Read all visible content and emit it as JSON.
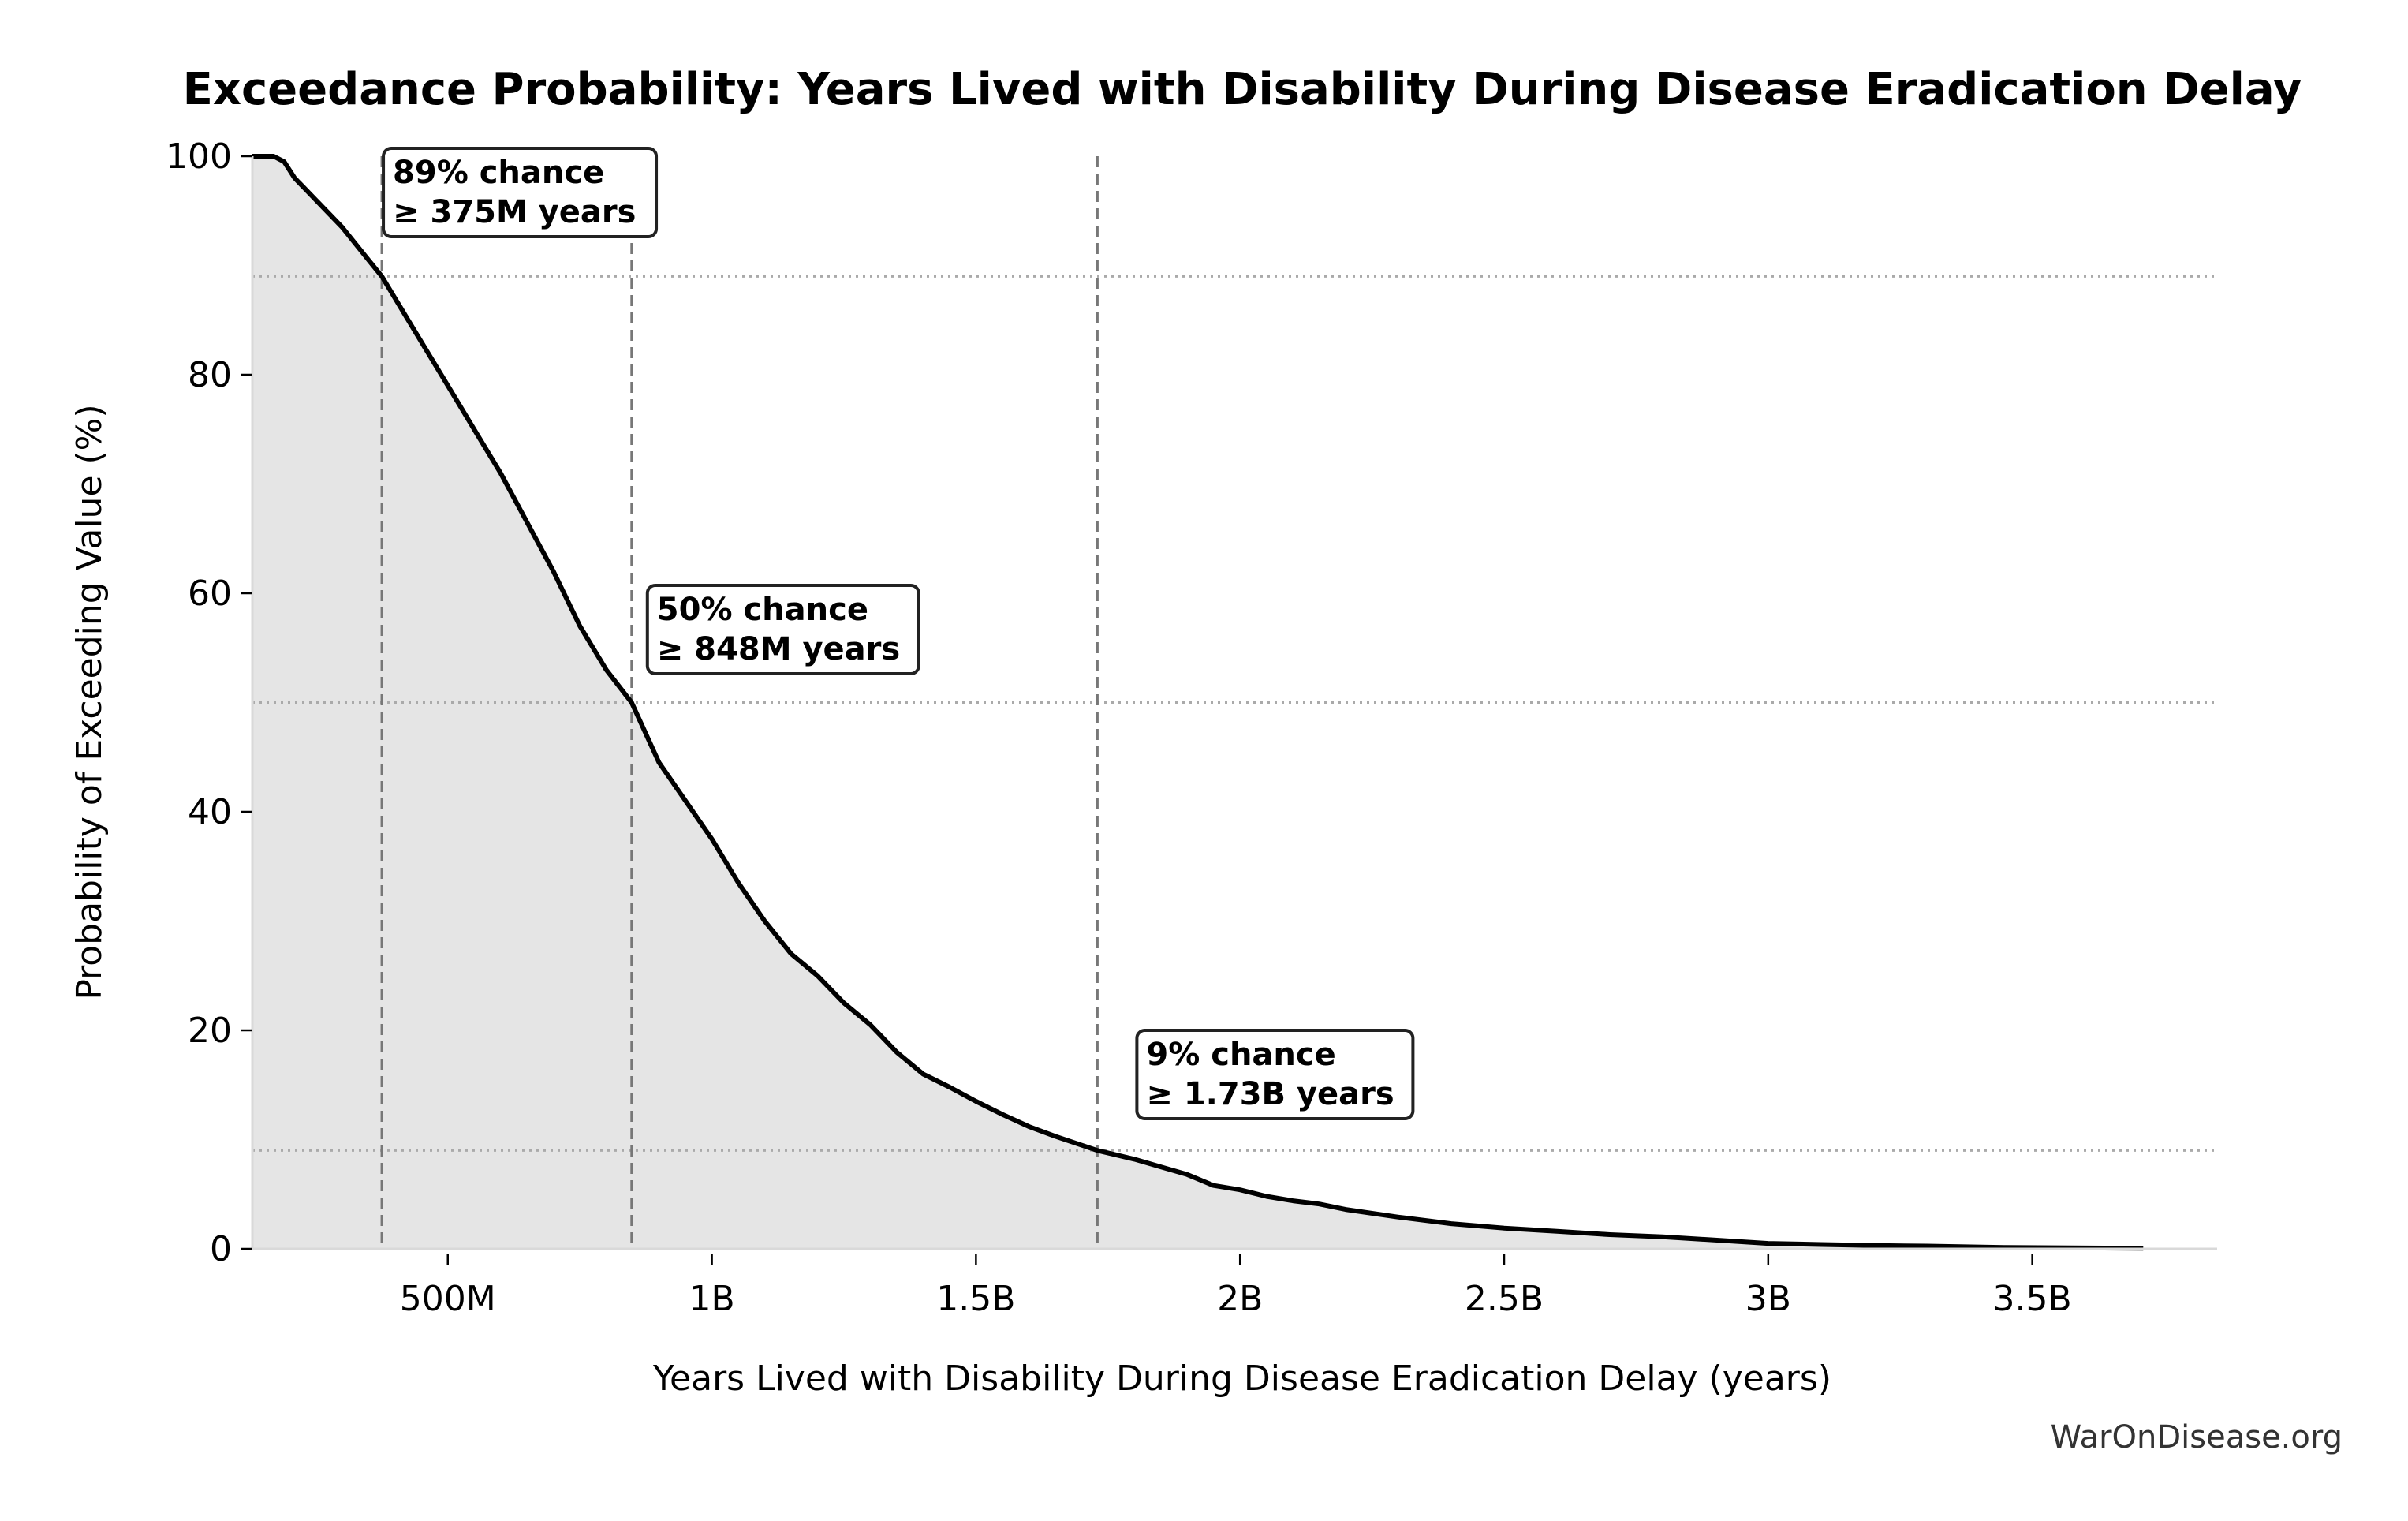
{
  "chart_data": {
    "type": "area",
    "title": "Exceedance Probability: Years Lived with Disability During Disease Eradication Delay",
    "xlabel": "Years Lived with Disability During Disease Eradication Delay (years)",
    "ylabel": "Probability of Exceeding Value (%)",
    "xlim": [
      0.13,
      3.85
    ],
    "ylim": [
      0,
      100
    ],
    "x_unit": "billion years",
    "x_ticks": [
      {
        "value": 0.5,
        "label": "500M"
      },
      {
        "value": 1.0,
        "label": "1B"
      },
      {
        "value": 1.5,
        "label": "1.5B"
      },
      {
        "value": 2.0,
        "label": "2B"
      },
      {
        "value": 2.5,
        "label": "2.5B"
      },
      {
        "value": 3.0,
        "label": "3B"
      },
      {
        "value": 3.5,
        "label": "3.5B"
      }
    ],
    "y_ticks": [
      {
        "value": 0,
        "label": "0"
      },
      {
        "value": 20,
        "label": "20"
      },
      {
        "value": 40,
        "label": "40"
      },
      {
        "value": 60,
        "label": "60"
      },
      {
        "value": 80,
        "label": "80"
      },
      {
        "value": 100,
        "label": "100"
      }
    ],
    "grid": false,
    "series": [
      {
        "name": "Exceedance probability",
        "color": "#000000",
        "fill": "#e5e5e5",
        "x": [
          0.13,
          0.17,
          0.19,
          0.21,
          0.25,
          0.3,
          0.35,
          0.375,
          0.4,
          0.45,
          0.5,
          0.55,
          0.6,
          0.65,
          0.7,
          0.75,
          0.8,
          0.848,
          0.9,
          0.95,
          1.0,
          1.05,
          1.1,
          1.15,
          1.2,
          1.25,
          1.3,
          1.35,
          1.4,
          1.45,
          1.5,
          1.55,
          1.6,
          1.65,
          1.73,
          1.8,
          1.85,
          1.9,
          1.95,
          2.0,
          2.05,
          2.1,
          2.15,
          2.2,
          2.3,
          2.4,
          2.5,
          2.6,
          2.7,
          2.8,
          2.9,
          3.0,
          3.1,
          3.2,
          3.3,
          3.45,
          3.71
        ],
        "y": [
          100,
          100,
          99.5,
          98,
          96,
          93.5,
          90.5,
          89,
          87,
          83,
          79,
          75,
          71,
          66.5,
          62,
          57,
          53,
          50,
          44.5,
          41,
          37.5,
          33.5,
          30,
          27,
          25,
          22.5,
          20.5,
          18,
          16,
          14.8,
          13.5,
          12.3,
          11.2,
          10.3,
          9,
          8.2,
          7.5,
          6.8,
          5.8,
          5.4,
          4.8,
          4.4,
          4.1,
          3.6,
          2.9,
          2.3,
          1.9,
          1.6,
          1.3,
          1.1,
          0.8,
          0.5,
          0.4,
          0.3,
          0.25,
          0.12,
          0.05
        ]
      }
    ],
    "reference_lines": {
      "horizontal": [
        89,
        50,
        9
      ],
      "vertical": [
        0.375,
        0.848,
        1.73
      ]
    },
    "annotations": [
      {
        "line1": "89% chance",
        "line2": "≥ 375M years",
        "x": 0.375,
        "y": 89
      },
      {
        "line1": "50% chance",
        "line2": "≥ 848M years",
        "x": 0.848,
        "y": 50
      },
      {
        "line1": "9% chance",
        "line2": "≥ 1.73B years",
        "x": 1.73,
        "y": 9
      }
    ],
    "watermark": "WarOnDisease.org"
  }
}
